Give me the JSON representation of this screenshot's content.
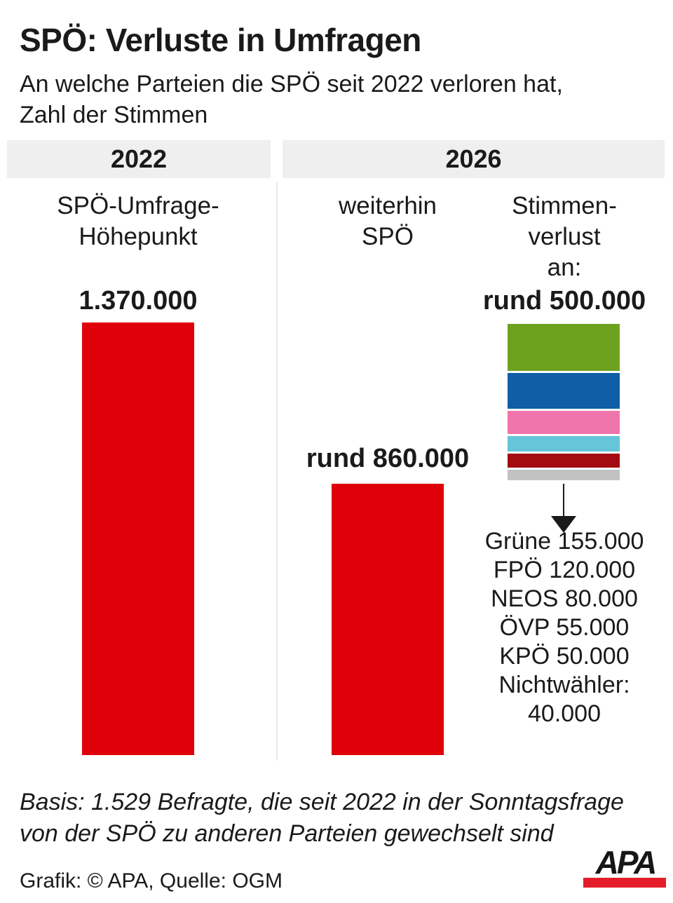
{
  "title": "SPÖ: Verluste in Umfragen",
  "subtitle": {
    "line1": "An welche Parteien die SPÖ seit 2022 verloren hat,",
    "line2": "Zahl der Stimmen"
  },
  "headers": {
    "left_year": "2022",
    "right_year": "2026"
  },
  "column_labels": {
    "col1_line1": "SPÖ-Umfrage-",
    "col1_line2": "Höhepunkt",
    "col2_line1": "weiterhin",
    "col2_line2": "SPÖ",
    "col3_line1": "Stimmen-",
    "col3_line2": "verlust",
    "col3_line3": "an:"
  },
  "chart_data": {
    "type": "bar",
    "unit": "Stimmen (votes)",
    "bars": [
      {
        "name": "SPÖ-Umfrage-Höhepunkt 2022",
        "label": "1.370.000",
        "value": 1370000,
        "color": "#e00009"
      },
      {
        "name": "weiterhin SPÖ 2026",
        "label": "rund 860.000",
        "value": 860000,
        "color": "#e00009"
      }
    ],
    "stacked_bar": {
      "name": "Stimmenverlust an",
      "label": "rund 500.000",
      "total": 500000,
      "segments": [
        {
          "party": "Grüne",
          "value": 155000,
          "color": "#6da21e"
        },
        {
          "party": "FPÖ",
          "value": 120000,
          "color": "#0e5fa6"
        },
        {
          "party": "NEOS",
          "value": 80000,
          "color": "#f075ac"
        },
        {
          "party": "ÖVP",
          "value": 55000,
          "color": "#66c5d8"
        },
        {
          "party": "KPÖ",
          "value": 50000,
          "color": "#a30a11"
        },
        {
          "party": "Nichtwähler",
          "value": 40000,
          "color": "#c2c2c2"
        }
      ]
    },
    "breakdown_lines": [
      "Grüne 155.000",
      "FPÖ 120.000",
      "NEOS 80.000",
      "ÖVP 55.000",
      "KPÖ 50.000",
      "Nichtwähler:",
      "40.000"
    ]
  },
  "footer": {
    "basis_line1": "Basis: 1.529 Befragte, die seit 2022 in der Sonntagsfrage",
    "basis_line2": "von der SPÖ zu anderen Parteien gewechselt sind",
    "credit": "Grafik: © APA, Quelle: OGM",
    "logo_text": "APA",
    "logo_bar_color": "#e51d29"
  }
}
